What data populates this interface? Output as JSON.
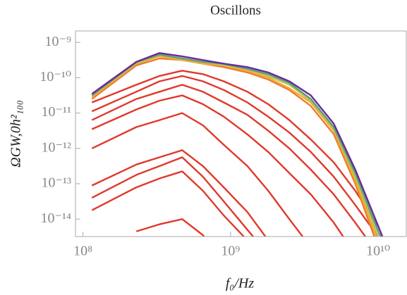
{
  "chart_data": {
    "type": "line",
    "title": "Oscillons",
    "xlabel": "f₀/Hz",
    "ylabel": "ΩGW,0h²₁₀₀",
    "xscale": "log",
    "yscale": "log",
    "xlim": [
      89000000.0,
      15500000000.0
    ],
    "ylim": [
      3.2e-15,
      2.1e-09
    ],
    "xticks": [
      {
        "value": 100000000.0,
        "label": "10⁸"
      },
      {
        "value": 1000000000.0,
        "label": "10⁹"
      },
      {
        "value": 10000000000.0,
        "label": "10¹⁰"
      }
    ],
    "yticks": [
      {
        "value": 1e-14,
        "label": "10⁻¹⁴"
      },
      {
        "value": 1e-13,
        "label": "10⁻¹³"
      },
      {
        "value": 1e-12,
        "label": "10⁻¹²"
      },
      {
        "value": 1e-11,
        "label": "10⁻¹¹"
      },
      {
        "value": 1e-10,
        "label": "10⁻¹⁰"
      },
      {
        "value": 1e-09,
        "label": "10⁻⁹"
      }
    ],
    "x": [
      115000000.0,
      230000000.0,
      330000000.0,
      470000000.0,
      650000000.0,
      900000000.0,
      1300000000.0,
      1800000000.0,
      2500000000.0,
      3500000000.0,
      5000000000.0,
      7000000000.0,
      10000000000.0,
      12500000000.0
    ],
    "series": [
      {
        "color": "#e0392b",
        "values": [
          null,
          4.5e-15,
          7.1e-15,
          1e-14,
          3.5e-15,
          6.3e-16,
          null,
          null,
          null,
          null,
          null,
          null,
          null,
          null
        ]
      },
      {
        "color": "#e0392b",
        "values": [
          1.78e-14,
          7.9e-14,
          1.41e-13,
          2.24e-13,
          6.3e-14,
          1.26e-14,
          2.5e-15,
          null,
          null,
          null,
          null,
          null,
          null,
          null
        ]
      },
      {
        "color": "#e0392b",
        "values": [
          4e-14,
          1.78e-13,
          3.16e-13,
          5.6e-13,
          1.58e-13,
          3.16e-14,
          5e-15,
          1e-15,
          null,
          null,
          null,
          null,
          null,
          null
        ]
      },
      {
        "color": "#e0392b",
        "values": [
          8.9e-14,
          3.5e-13,
          5.6e-13,
          8.9e-13,
          3.16e-13,
          7.9e-14,
          1.58e-14,
          2.5e-15,
          null,
          null,
          null,
          null,
          null,
          null
        ]
      },
      {
        "color": "#e0392b",
        "values": [
          1e-12,
          4e-12,
          6.3e-12,
          1e-11,
          4.5e-12,
          1.26e-12,
          3.16e-13,
          6.3e-14,
          1e-14,
          1.58e-15,
          null,
          null,
          null,
          null
        ]
      },
      {
        "color": "#e0392b",
        "values": [
          3.5e-12,
          1.26e-11,
          2.24e-11,
          3.16e-11,
          1.78e-11,
          7.9e-12,
          2.5e-12,
          7.9e-13,
          2e-13,
          5e-14,
          7.9e-15,
          1e-15,
          null,
          null
        ]
      },
      {
        "color": "#e0392b",
        "values": [
          6.3e-12,
          2.5e-11,
          4e-11,
          6.3e-11,
          4e-11,
          2e-11,
          8.9e-12,
          3.16e-12,
          1e-12,
          2.5e-13,
          5e-14,
          7.9e-15,
          1e-15,
          null
        ]
      },
      {
        "color": "#e0392b",
        "values": [
          1.12e-11,
          4e-11,
          7.9e-11,
          1.12e-10,
          7.9e-11,
          4.5e-11,
          2e-11,
          7.9e-12,
          2.8e-12,
          7.9e-13,
          1.58e-13,
          2.5e-14,
          3.16e-15,
          null
        ]
      },
      {
        "color": "#e0392b",
        "values": [
          2e-11,
          6.3e-11,
          1.12e-10,
          1.58e-10,
          1.26e-10,
          7.9e-11,
          4e-11,
          1.78e-11,
          6.3e-12,
          1.78e-12,
          4e-13,
          6.3e-14,
          6.3e-15,
          null
        ]
      },
      {
        "color": "#f07a2a",
        "values": [
          2.5e-11,
          2.24e-10,
          3.5e-10,
          3.16e-10,
          2.5e-10,
          2e-10,
          1.41e-10,
          8.9e-11,
          4.5e-11,
          1.58e-11,
          2.5e-12,
          1e-13,
          1.58e-15,
          null
        ]
      },
      {
        "color": "#f4a93a",
        "values": [
          2.8e-11,
          2.5e-10,
          4e-10,
          3.16e-10,
          2.5e-10,
          2.24e-10,
          1.58e-10,
          1e-10,
          5e-11,
          2e-11,
          3.16e-12,
          1.26e-13,
          2.24e-15,
          null
        ]
      },
      {
        "color": "#b9c44a",
        "values": [
          3.16e-11,
          2.5e-10,
          4.5e-10,
          3.5e-10,
          2.8e-10,
          2.24e-10,
          1.78e-10,
          1.12e-10,
          6.3e-11,
          2.24e-11,
          3.5e-12,
          1.58e-13,
          3.16e-15,
          null
        ]
      },
      {
        "color": "#5aa07a",
        "values": [
          3.16e-11,
          2.8e-10,
          4.5e-10,
          3.5e-10,
          2.8e-10,
          2.5e-10,
          1.78e-10,
          1.26e-10,
          7.1e-11,
          2.5e-11,
          4e-12,
          2e-13,
          4.5e-15,
          6.3e-16
        ]
      },
      {
        "color": "#6a2a9a",
        "values": [
          3.5e-11,
          2.8e-10,
          5e-10,
          4e-10,
          3.16e-10,
          2.5e-10,
          2e-10,
          1.41e-10,
          7.9e-11,
          3.16e-11,
          5e-12,
          2.5e-13,
          6.3e-15,
          6.3e-16
        ]
      }
    ]
  }
}
